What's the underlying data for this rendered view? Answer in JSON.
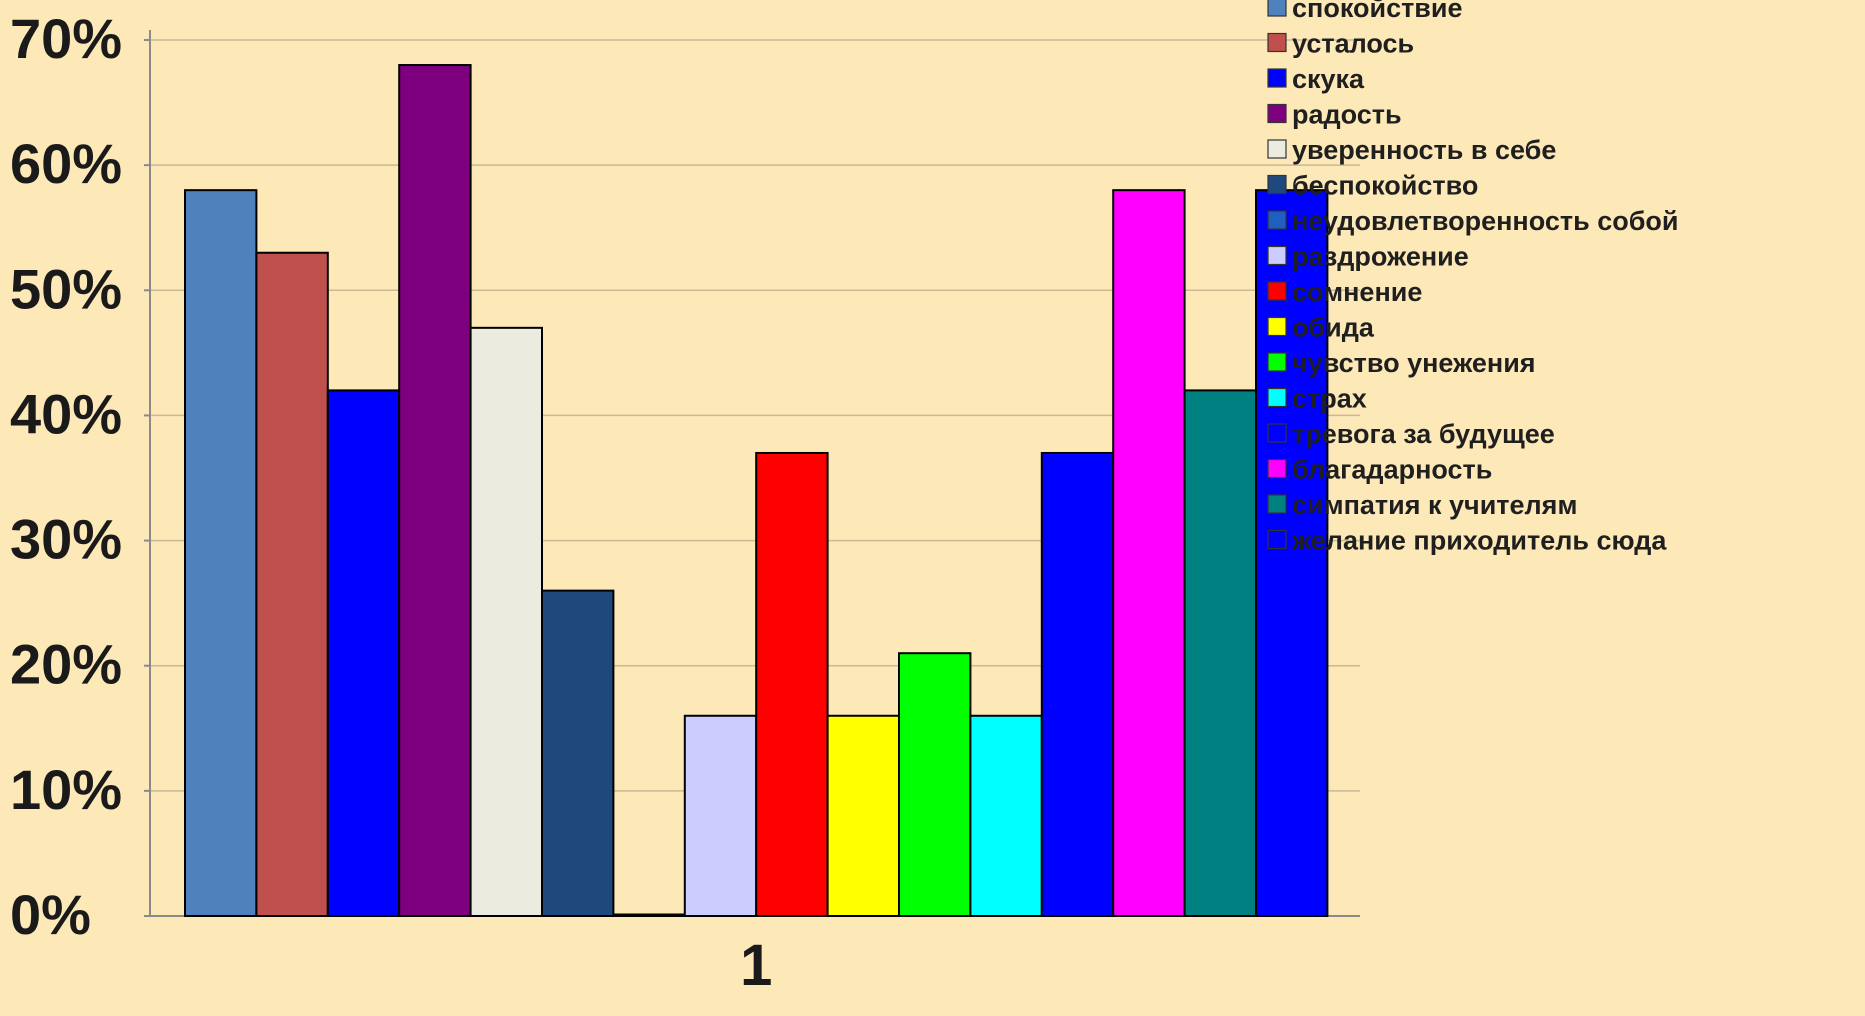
{
  "chart_data": {
    "type": "bar",
    "categories": [
      "1"
    ],
    "y_ticks": [
      "0%",
      "10%",
      "20%",
      "30%",
      "40%",
      "50%",
      "60%",
      "70%"
    ],
    "ylim": [
      0,
      70
    ],
    "grid": true,
    "legend_position": "right",
    "series": [
      {
        "name": "спокойствие",
        "values": [
          58
        ],
        "color": "#4f81bd"
      },
      {
        "name": "усталось",
        "values": [
          53
        ],
        "color": "#c0504d"
      },
      {
        "name": "скука",
        "values": [
          42
        ],
        "color": "#0000ff"
      },
      {
        "name": "радость",
        "values": [
          68
        ],
        "color": "#7f007f"
      },
      {
        "name": "уверенность в себе",
        "values": [
          47
        ],
        "color": "#ebebe0"
      },
      {
        "name": "беспокойство",
        "values": [
          26
        ],
        "color": "#1f497d"
      },
      {
        "name": "неудовлетворенность собой",
        "values": [
          0
        ],
        "color": "#1f5fbf"
      },
      {
        "name": "раздрожение",
        "values": [
          16
        ],
        "color": "#ccccff"
      },
      {
        "name": "сомнение",
        "values": [
          37
        ],
        "color": "#ff0000"
      },
      {
        "name": "обида",
        "values": [
          16
        ],
        "color": "#ffff00"
      },
      {
        "name": "чувство унежения",
        "values": [
          21
        ],
        "color": "#00ff00"
      },
      {
        "name": "страх",
        "values": [
          16
        ],
        "color": "#00ffff"
      },
      {
        "name": "тревога за будущее",
        "values": [
          37
        ],
        "color": "#0000ff"
      },
      {
        "name": "благадарность",
        "values": [
          58
        ],
        "color": "#ff00ff"
      },
      {
        "name": "симпатия к учителям",
        "values": [
          42
        ],
        "color": "#008080"
      },
      {
        "name": "желание приходитель сюда",
        "values": [
          58
        ],
        "color": "#0000ff"
      }
    ]
  }
}
